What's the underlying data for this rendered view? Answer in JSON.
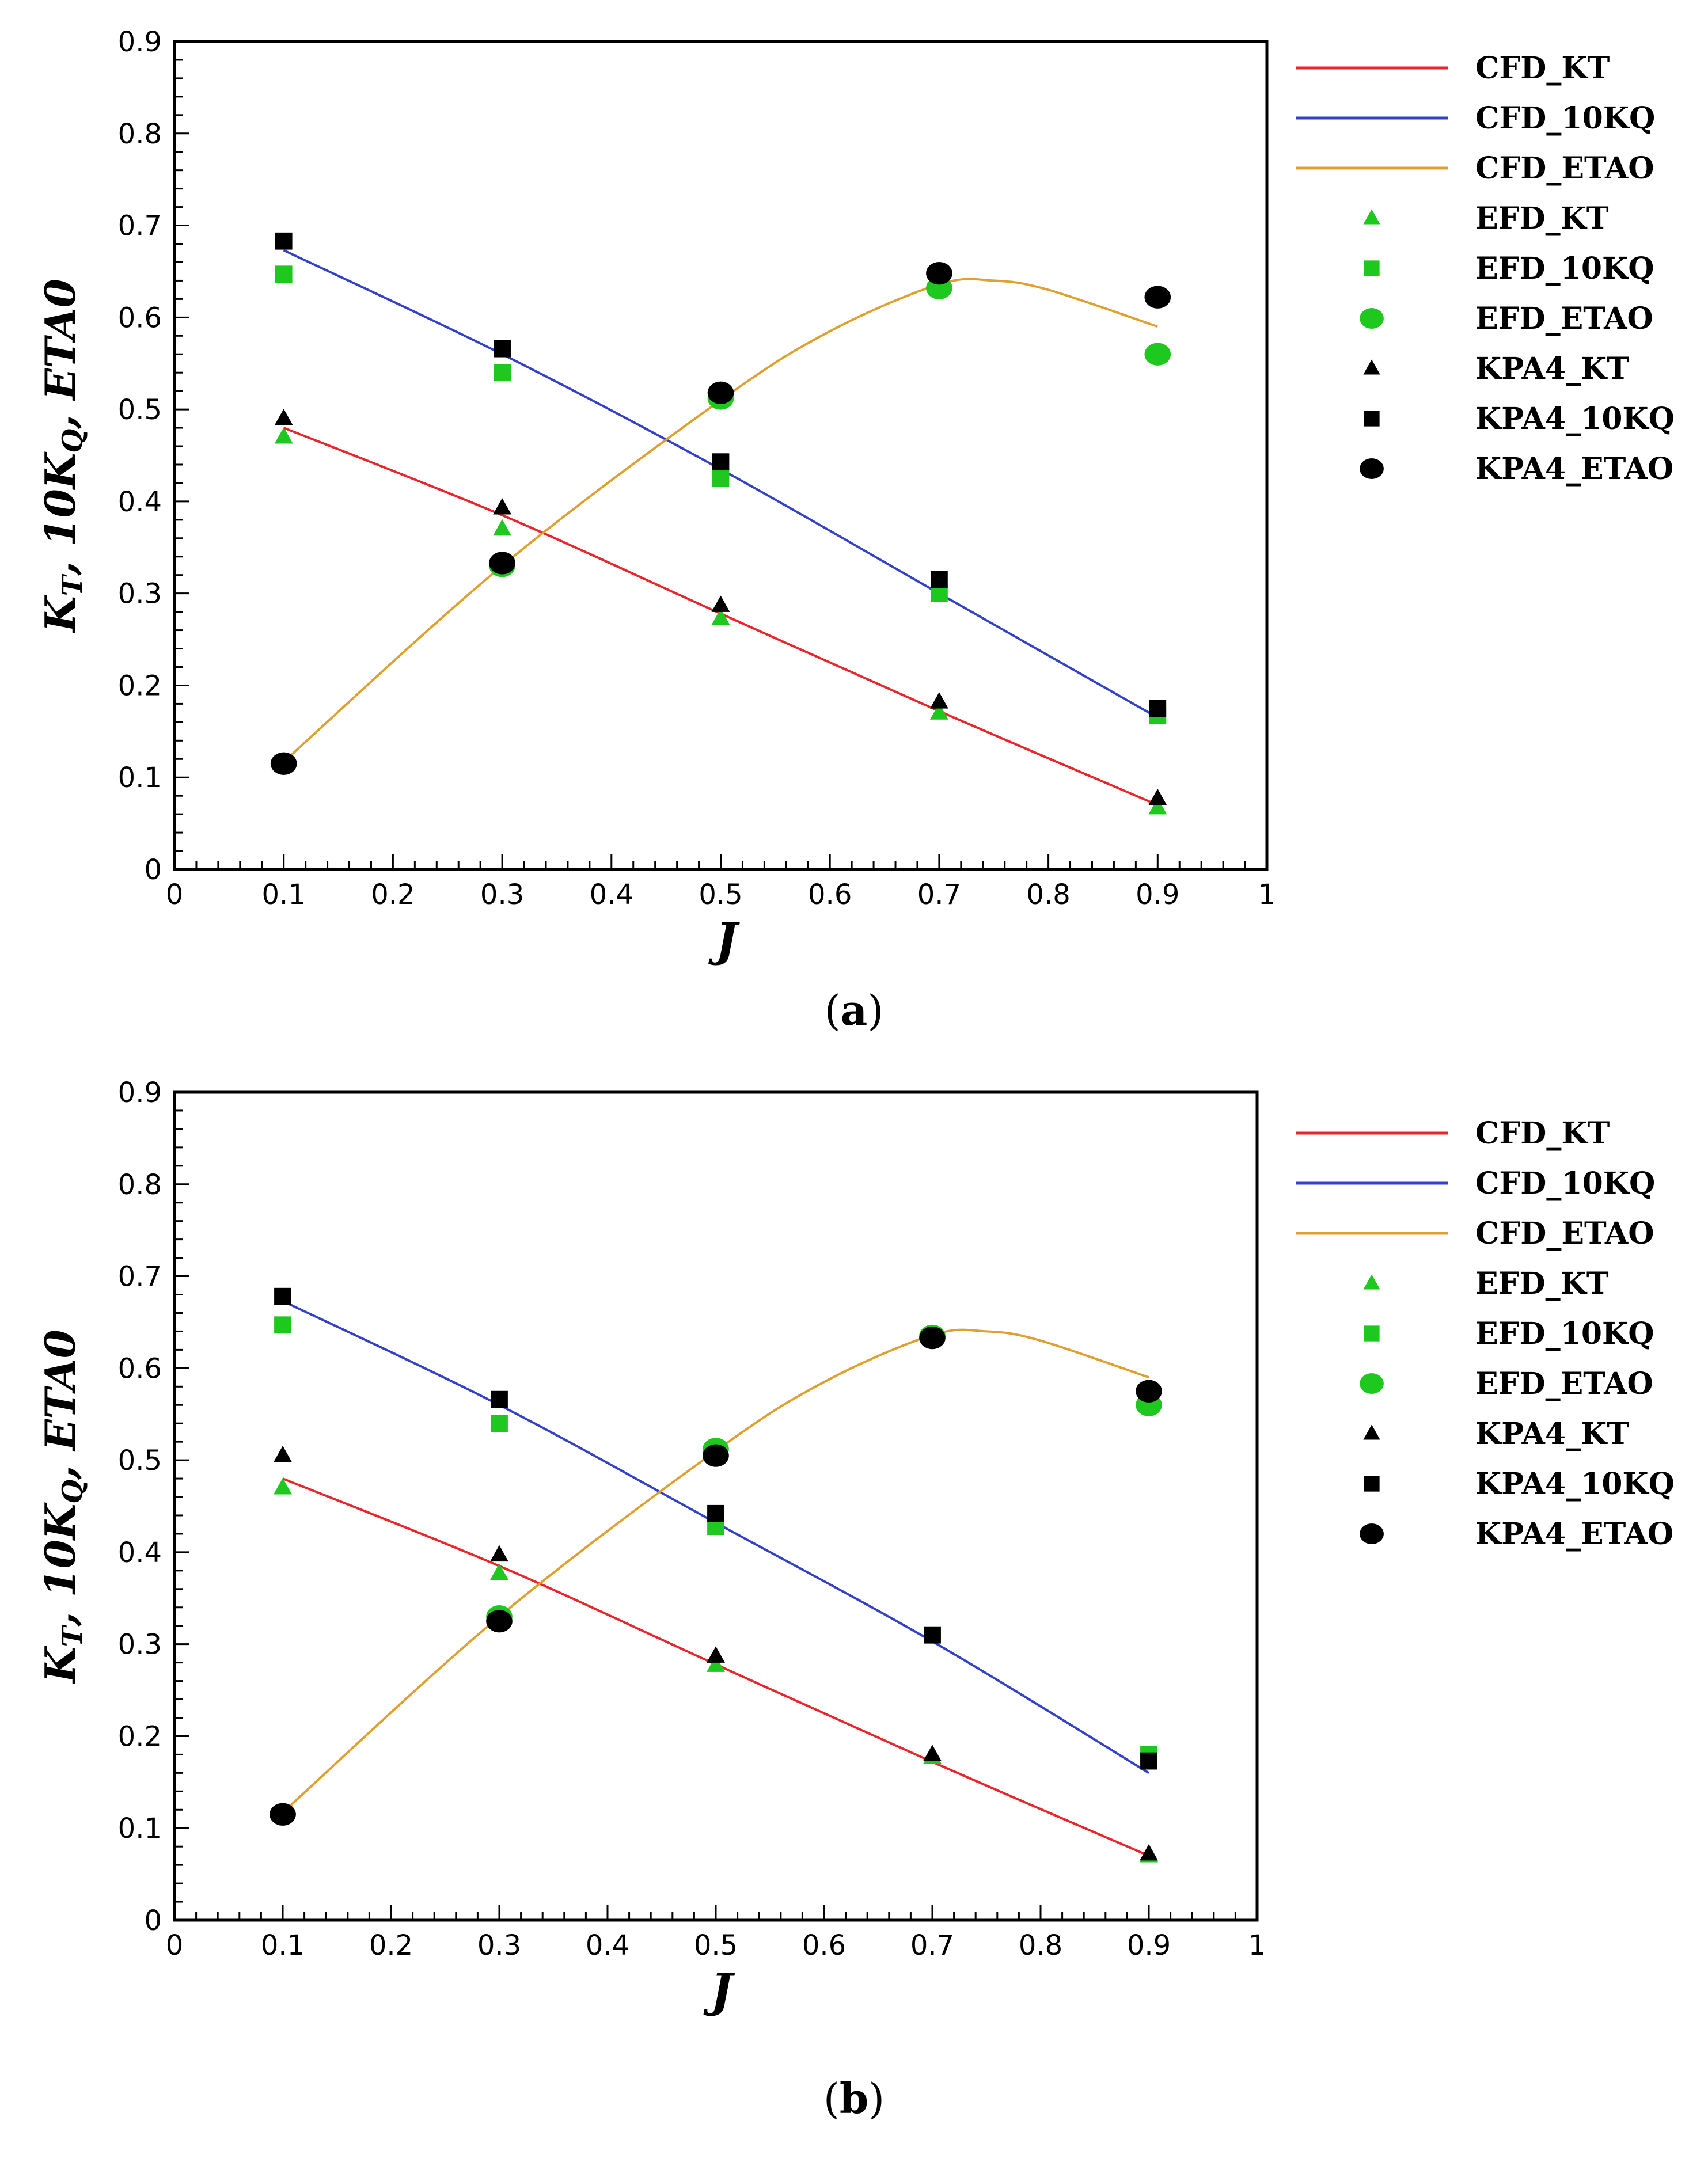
{
  "colors": {
    "cfd_kt": "#e8262b",
    "cfd_10kq": "#3340c8",
    "cfd_etao": "#e0a030",
    "efd": "#1ec81e",
    "kpa4": "#000000"
  },
  "chart_data": [
    {
      "type": "line",
      "caption": {
        "open": "(",
        "letter": "a",
        "close": ")"
      },
      "xlabel": "J",
      "ylabel": {
        "main": "K",
        "sub1": "T",
        "mid": ", 10K",
        "sub2": "Q",
        "end": ", ETA0"
      },
      "xlim": [
        0,
        1
      ],
      "ylim": [
        0,
        0.9
      ],
      "xticks": [
        "0",
        "0.1",
        "0.2",
        "0.3",
        "0.4",
        "0.5",
        "0.6",
        "0.7",
        "0.8",
        "0.9",
        "1"
      ],
      "yticks": [
        "0",
        "0.1",
        "0.2",
        "0.3",
        "0.4",
        "0.5",
        "0.6",
        "0.7",
        "0.8",
        "0.9"
      ],
      "lines": [
        {
          "name": "CFD_KT",
          "color_key": "cfd_kt",
          "x": [
            0.1,
            0.3,
            0.5,
            0.7,
            0.9
          ],
          "y": [
            0.48,
            0.385,
            0.278,
            0.172,
            0.07
          ]
        },
        {
          "name": "CFD_10KQ",
          "color_key": "cfd_10kq",
          "x": [
            0.1,
            0.3,
            0.5,
            0.7,
            0.9
          ],
          "y": [
            0.673,
            0.56,
            0.435,
            0.3,
            0.165
          ]
        },
        {
          "name": "CFD_ETAO",
          "color_key": "cfd_etao",
          "x": [
            0.1,
            0.3,
            0.5,
            0.6,
            0.7,
            0.75,
            0.8,
            0.9
          ],
          "y": [
            0.117,
            0.33,
            0.51,
            0.585,
            0.636,
            0.64,
            0.63,
            0.59
          ]
        }
      ],
      "markers": [
        {
          "name": "EFD_KT",
          "shape": "triangle",
          "color_key": "efd",
          "x": [
            0.1,
            0.3,
            0.5,
            0.7,
            0.9
          ],
          "y": [
            0.47,
            0.37,
            0.273,
            0.17,
            0.067
          ]
        },
        {
          "name": "EFD_10KQ",
          "shape": "square",
          "color_key": "efd",
          "x": [
            0.1,
            0.3,
            0.5,
            0.7,
            0.9
          ],
          "y": [
            0.647,
            0.54,
            0.425,
            0.3,
            0.167
          ]
        },
        {
          "name": "EFD_ETAO",
          "shape": "circle",
          "color_key": "efd",
          "x": [
            0.1,
            0.3,
            0.5,
            0.7,
            0.9
          ],
          "y": [
            0.115,
            0.33,
            0.512,
            0.632,
            0.56
          ]
        },
        {
          "name": "KPA4_KT",
          "shape": "triangle",
          "color_key": "kpa4",
          "x": [
            0.1,
            0.3,
            0.5,
            0.7,
            0.9
          ],
          "y": [
            0.49,
            0.393,
            0.287,
            0.182,
            0.077
          ]
        },
        {
          "name": "KPA4_10KQ",
          "shape": "square",
          "color_key": "kpa4",
          "x": [
            0.1,
            0.3,
            0.5,
            0.7,
            0.9
          ],
          "y": [
            0.683,
            0.566,
            0.443,
            0.315,
            0.175
          ]
        },
        {
          "name": "KPA4_ETAO",
          "shape": "circle",
          "color_key": "kpa4",
          "x": [
            0.1,
            0.3,
            0.5,
            0.7,
            0.9
          ],
          "y": [
            0.115,
            0.333,
            0.518,
            0.648,
            0.622
          ]
        }
      ]
    },
    {
      "type": "line",
      "caption": {
        "open": "(",
        "letter": "b",
        "close": ")"
      },
      "xlabel": "J",
      "ylabel": {
        "main": "K",
        "sub1": "T",
        "mid": ", 10K",
        "sub2": "Q",
        "end": ", ETA0"
      },
      "xlim": [
        0,
        1
      ],
      "ylim": [
        0,
        0.9
      ],
      "xticks": [
        "0",
        "0.1",
        "0.2",
        "0.3",
        "0.4",
        "0.5",
        "0.6",
        "0.7",
        "0.8",
        "0.9",
        "1"
      ],
      "yticks": [
        "0",
        "0.1",
        "0.2",
        "0.3",
        "0.4",
        "0.5",
        "0.6",
        "0.7",
        "0.8",
        "0.9"
      ],
      "lines": [
        {
          "name": "CFD_KT",
          "color_key": "cfd_kt",
          "x": [
            0.1,
            0.3,
            0.5,
            0.7,
            0.9
          ],
          "y": [
            0.48,
            0.385,
            0.278,
            0.172,
            0.07
          ]
        },
        {
          "name": "CFD_10KQ",
          "color_key": "cfd_10kq",
          "x": [
            0.1,
            0.3,
            0.5,
            0.7,
            0.9
          ],
          "y": [
            0.673,
            0.56,
            0.432,
            0.303,
            0.16
          ]
        },
        {
          "name": "CFD_ETAO",
          "color_key": "cfd_etao",
          "x": [
            0.1,
            0.3,
            0.5,
            0.6,
            0.7,
            0.75,
            0.8,
            0.9
          ],
          "y": [
            0.117,
            0.33,
            0.51,
            0.585,
            0.636,
            0.64,
            0.63,
            0.59
          ]
        }
      ],
      "markers": [
        {
          "name": "EFD_KT",
          "shape": "triangle",
          "color_key": "efd",
          "x": [
            0.1,
            0.3,
            0.5,
            0.7,
            0.9
          ],
          "y": [
            0.47,
            0.377,
            0.277,
            0.177,
            0.07
          ]
        },
        {
          "name": "EFD_10KQ",
          "shape": "square",
          "color_key": "efd",
          "x": [
            0.1,
            0.3,
            0.5,
            0.7,
            0.9
          ],
          "y": [
            0.647,
            0.54,
            0.428,
            0.31,
            0.18
          ]
        },
        {
          "name": "EFD_ETAO",
          "shape": "circle",
          "color_key": "efd",
          "x": [
            0.1,
            0.3,
            0.5,
            0.7,
            0.9
          ],
          "y": [
            0.115,
            0.33,
            0.512,
            0.635,
            0.56
          ]
        },
        {
          "name": "KPA4_KT",
          "shape": "triangle",
          "color_key": "kpa4",
          "x": [
            0.1,
            0.3,
            0.5,
            0.7,
            0.9
          ],
          "y": [
            0.505,
            0.397,
            0.287,
            0.18,
            0.072
          ]
        },
        {
          "name": "KPA4_10KQ",
          "shape": "square",
          "color_key": "kpa4",
          "x": [
            0.1,
            0.3,
            0.5,
            0.7,
            0.9
          ],
          "y": [
            0.678,
            0.566,
            0.442,
            0.31,
            0.173
          ]
        },
        {
          "name": "KPA4_ETAO",
          "shape": "circle",
          "color_key": "kpa4",
          "x": [
            0.1,
            0.3,
            0.5,
            0.7,
            0.9
          ],
          "y": [
            0.115,
            0.325,
            0.505,
            0.633,
            0.575
          ]
        }
      ]
    }
  ]
}
